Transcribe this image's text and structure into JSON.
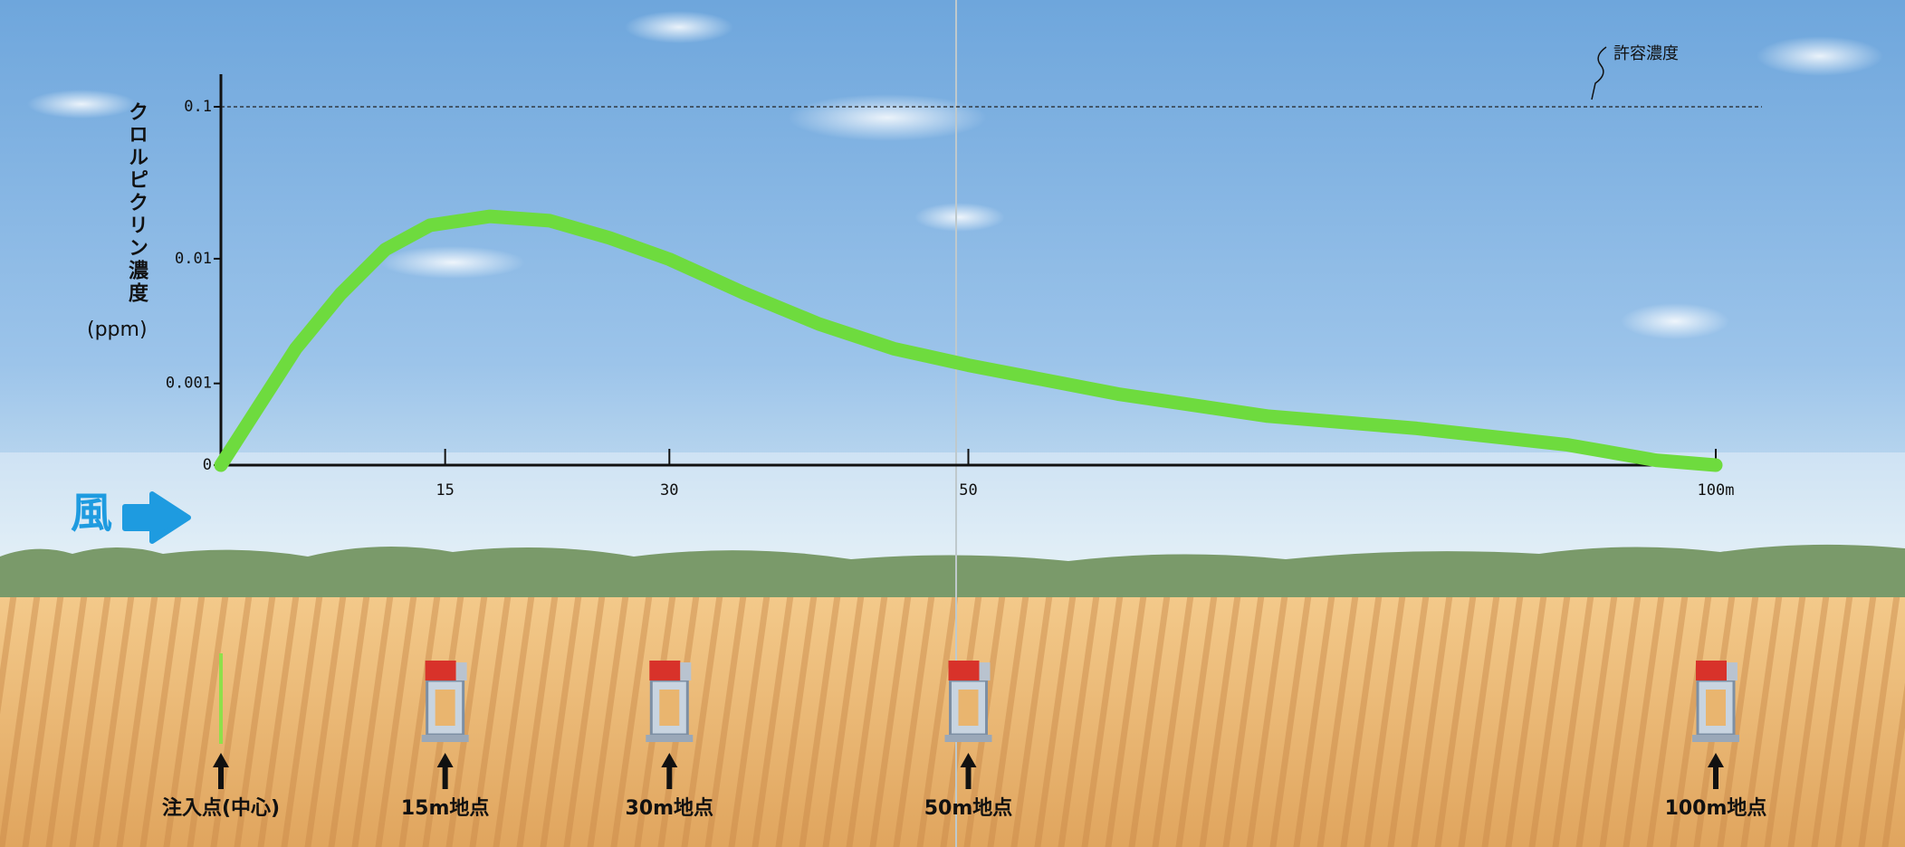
{
  "chart_data": {
    "type": "line",
    "y_label": "クロルピクリン濃度",
    "y_unit": "(ppm)",
    "x": [
      0,
      2,
      5,
      8,
      11,
      14,
      18,
      22,
      26,
      30,
      35,
      40,
      45,
      50,
      60,
      70,
      80,
      90,
      96,
      100
    ],
    "values": [
      0,
      0.00057,
      0.0019,
      0.0052,
      0.0115,
      0.0166,
      0.019,
      0.0178,
      0.0137,
      0.0099,
      0.0053,
      0.003,
      0.0019,
      0.0014,
      0.00087,
      0.0006,
      0.00045,
      0.00025,
      6e-05,
      0
    ],
    "color": "#6edb3e",
    "xlim": [
      0,
      100
    ],
    "xticks": [
      15,
      30,
      50,
      {
        "value": 100,
        "label": "100m"
      }
    ],
    "ylim": [
      0,
      0.1
    ],
    "yticks": [
      0,
      0.001,
      0.01,
      0.1
    ],
    "yscale": "tick-interpolated",
    "threshold": {
      "label": "許容濃度",
      "value": 0.1
    },
    "wind_label": "風",
    "stations": [
      {
        "x": 0,
        "label": "注入点(中心)"
      },
      {
        "x": 15,
        "label": "15m地点"
      },
      {
        "x": 30,
        "label": "30m地点"
      },
      {
        "x": 50,
        "label": "50m地点"
      },
      {
        "x": 100,
        "label": "100m地点"
      }
    ]
  }
}
